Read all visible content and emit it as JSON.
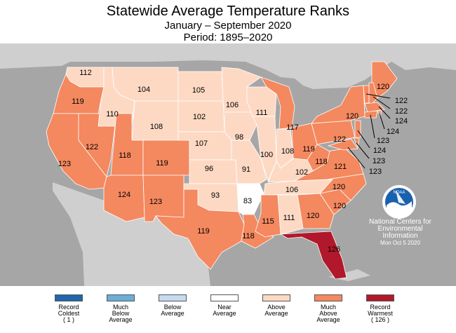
{
  "title": "Statewide Average Temperature Ranks",
  "subtitle": "January – September 2020",
  "period": "Period: 1895–2020",
  "colors": {
    "background": "#a6a6a6",
    "neighbor_land": "#cfcfcf",
    "record_coldest": "#2166ac",
    "much_below": "#6baed6",
    "below": "#c6dbef",
    "near": "#ffffff",
    "above": "#fdd9c4",
    "much_above": "#f4885f",
    "record_warmest": "#b2182b"
  },
  "states": [
    {
      "id": "WA",
      "rank": "112",
      "category": "above"
    },
    {
      "id": "OR",
      "rank": "119",
      "category": "much_above"
    },
    {
      "id": "CA",
      "rank": "123",
      "category": "much_above"
    },
    {
      "id": "NV",
      "rank": "122",
      "category": "much_above"
    },
    {
      "id": "ID",
      "rank": "110",
      "category": "above"
    },
    {
      "id": "MT",
      "rank": "104",
      "category": "above"
    },
    {
      "id": "WY",
      "rank": "108",
      "category": "above"
    },
    {
      "id": "UT",
      "rank": "118",
      "category": "much_above"
    },
    {
      "id": "AZ",
      "rank": "124",
      "category": "much_above"
    },
    {
      "id": "CO",
      "rank": "119",
      "category": "much_above"
    },
    {
      "id": "NM",
      "rank": "123",
      "category": "much_above"
    },
    {
      "id": "ND",
      "rank": "105",
      "category": "above"
    },
    {
      "id": "SD",
      "rank": "102",
      "category": "above"
    },
    {
      "id": "NE",
      "rank": "107",
      "category": "above"
    },
    {
      "id": "KS",
      "rank": "96",
      "category": "above"
    },
    {
      "id": "OK",
      "rank": "93",
      "category": "above"
    },
    {
      "id": "TX",
      "rank": "119",
      "category": "much_above"
    },
    {
      "id": "MN",
      "rank": "106",
      "category": "above"
    },
    {
      "id": "IA",
      "rank": "98",
      "category": "above"
    },
    {
      "id": "MO",
      "rank": "91",
      "category": "above"
    },
    {
      "id": "AR",
      "rank": "83",
      "category": "near"
    },
    {
      "id": "LA",
      "rank": "118",
      "category": "much_above"
    },
    {
      "id": "WI",
      "rank": "111",
      "category": "above"
    },
    {
      "id": "IL",
      "rank": "100",
      "category": "above"
    },
    {
      "id": "MI",
      "rank": "117",
      "category": "much_above"
    },
    {
      "id": "IN",
      "rank": "108",
      "category": "above"
    },
    {
      "id": "OH",
      "rank": "119",
      "category": "much_above"
    },
    {
      "id": "KY",
      "rank": "102",
      "category": "above"
    },
    {
      "id": "TN",
      "rank": "106",
      "category": "above"
    },
    {
      "id": "MS",
      "rank": "115",
      "category": "much_above"
    },
    {
      "id": "AL",
      "rank": "111",
      "category": "above"
    },
    {
      "id": "GA",
      "rank": "120",
      "category": "much_above"
    },
    {
      "id": "FL",
      "rank": "126",
      "category": "record_warmest"
    },
    {
      "id": "SC",
      "rank": "120",
      "category": "much_above"
    },
    {
      "id": "NC",
      "rank": "120",
      "category": "much_above"
    },
    {
      "id": "VA",
      "rank": "121",
      "category": "much_above"
    },
    {
      "id": "WV",
      "rank": "118",
      "category": "much_above"
    },
    {
      "id": "PA",
      "rank": "122",
      "category": "much_above"
    },
    {
      "id": "NY",
      "rank": "120",
      "category": "much_above"
    },
    {
      "id": "ME",
      "rank": "120",
      "category": "much_above"
    },
    {
      "id": "VT",
      "rank": "122",
      "category": "much_above"
    },
    {
      "id": "NH",
      "rank": "122",
      "category": "much_above"
    },
    {
      "id": "MA",
      "rank": "124",
      "category": "much_above"
    },
    {
      "id": "RI",
      "rank": "124",
      "category": "much_above"
    },
    {
      "id": "CT",
      "rank": "123",
      "category": "much_above"
    },
    {
      "id": "NJ",
      "rank": "124",
      "category": "much_above"
    },
    {
      "id": "DE",
      "rank": "123",
      "category": "much_above"
    },
    {
      "id": "MD",
      "rank": "123",
      "category": "much_above"
    }
  ],
  "credit": {
    "logo_text": "NOAA",
    "line1": "National Centers for",
    "line2": "Environmental",
    "line3": "Information",
    "date": "Mon Oct  5 2020"
  },
  "legend": [
    {
      "key": "record_coldest",
      "label": "Record\nColdest\n( 1 )"
    },
    {
      "key": "much_below",
      "label": "Much\nBelow\nAverage"
    },
    {
      "key": "below",
      "label": "Below\nAverage"
    },
    {
      "key": "near",
      "label": "Near\nAverage"
    },
    {
      "key": "above",
      "label": "Above\nAverage"
    },
    {
      "key": "much_above",
      "label": "Much\nAbove\nAverage"
    },
    {
      "key": "record_warmest",
      "label": "Record\nWarmest\n( 126 )"
    }
  ]
}
